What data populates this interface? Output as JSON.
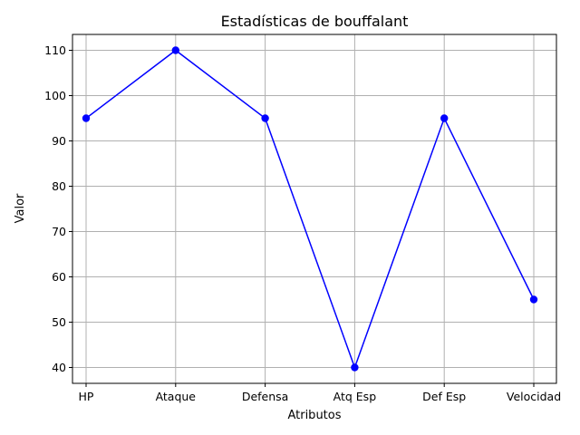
{
  "chart_data": {
    "type": "line",
    "title": "Estadísticas de bouffalant",
    "xlabel": "Atributos",
    "ylabel": "Valor",
    "categories": [
      "HP",
      "Ataque",
      "Defensa",
      "Atq Esp",
      "Def Esp",
      "Velocidad"
    ],
    "series": [
      {
        "values": [
          95,
          110,
          95,
          40,
          95,
          55
        ],
        "color": "#0000ff",
        "marker": "circle"
      }
    ],
    "ylim": [
      36.5,
      113.5
    ],
    "yticks": [
      40,
      50,
      60,
      70,
      80,
      90,
      100,
      110
    ],
    "grid": true
  }
}
